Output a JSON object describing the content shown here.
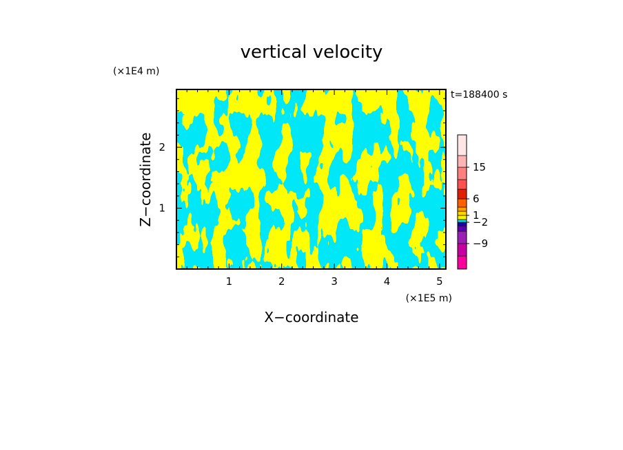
{
  "chart_data": {
    "type": "heatmap",
    "title": "vertical velocity",
    "xlabel": "X−coordinate",
    "ylabel": "Z−coordinate",
    "x_unit": "(×1E5 m)",
    "y_unit": "(×1E4 m)",
    "time_label": "t=188400 s",
    "xlim": [
      0,
      5.12
    ],
    "ylim": [
      0,
      2.95
    ],
    "x_ticks": [
      1,
      2,
      3,
      4,
      5
    ],
    "y_ticks": [
      1,
      2
    ],
    "colorbar": {
      "tick_labels": [
        "15",
        "6",
        "1",
        "−2",
        "−9"
      ],
      "tick_values": [
        15,
        6,
        1,
        -2,
        -9
      ],
      "colors": [
        "#ff00a0",
        "#c800a0",
        "#9b1fb4",
        "#5a00b4",
        "#1e00a8",
        "#00d8f0",
        "#fff000",
        "#ffd400",
        "#ff9f00",
        "#ff6000",
        "#e02000",
        "#ff5050",
        "#ff8080",
        "#ffb4b4",
        "#ffe6e6"
      ],
      "dominant_colors": [
        "#00e8f8",
        "#ffff00"
      ]
    }
  }
}
